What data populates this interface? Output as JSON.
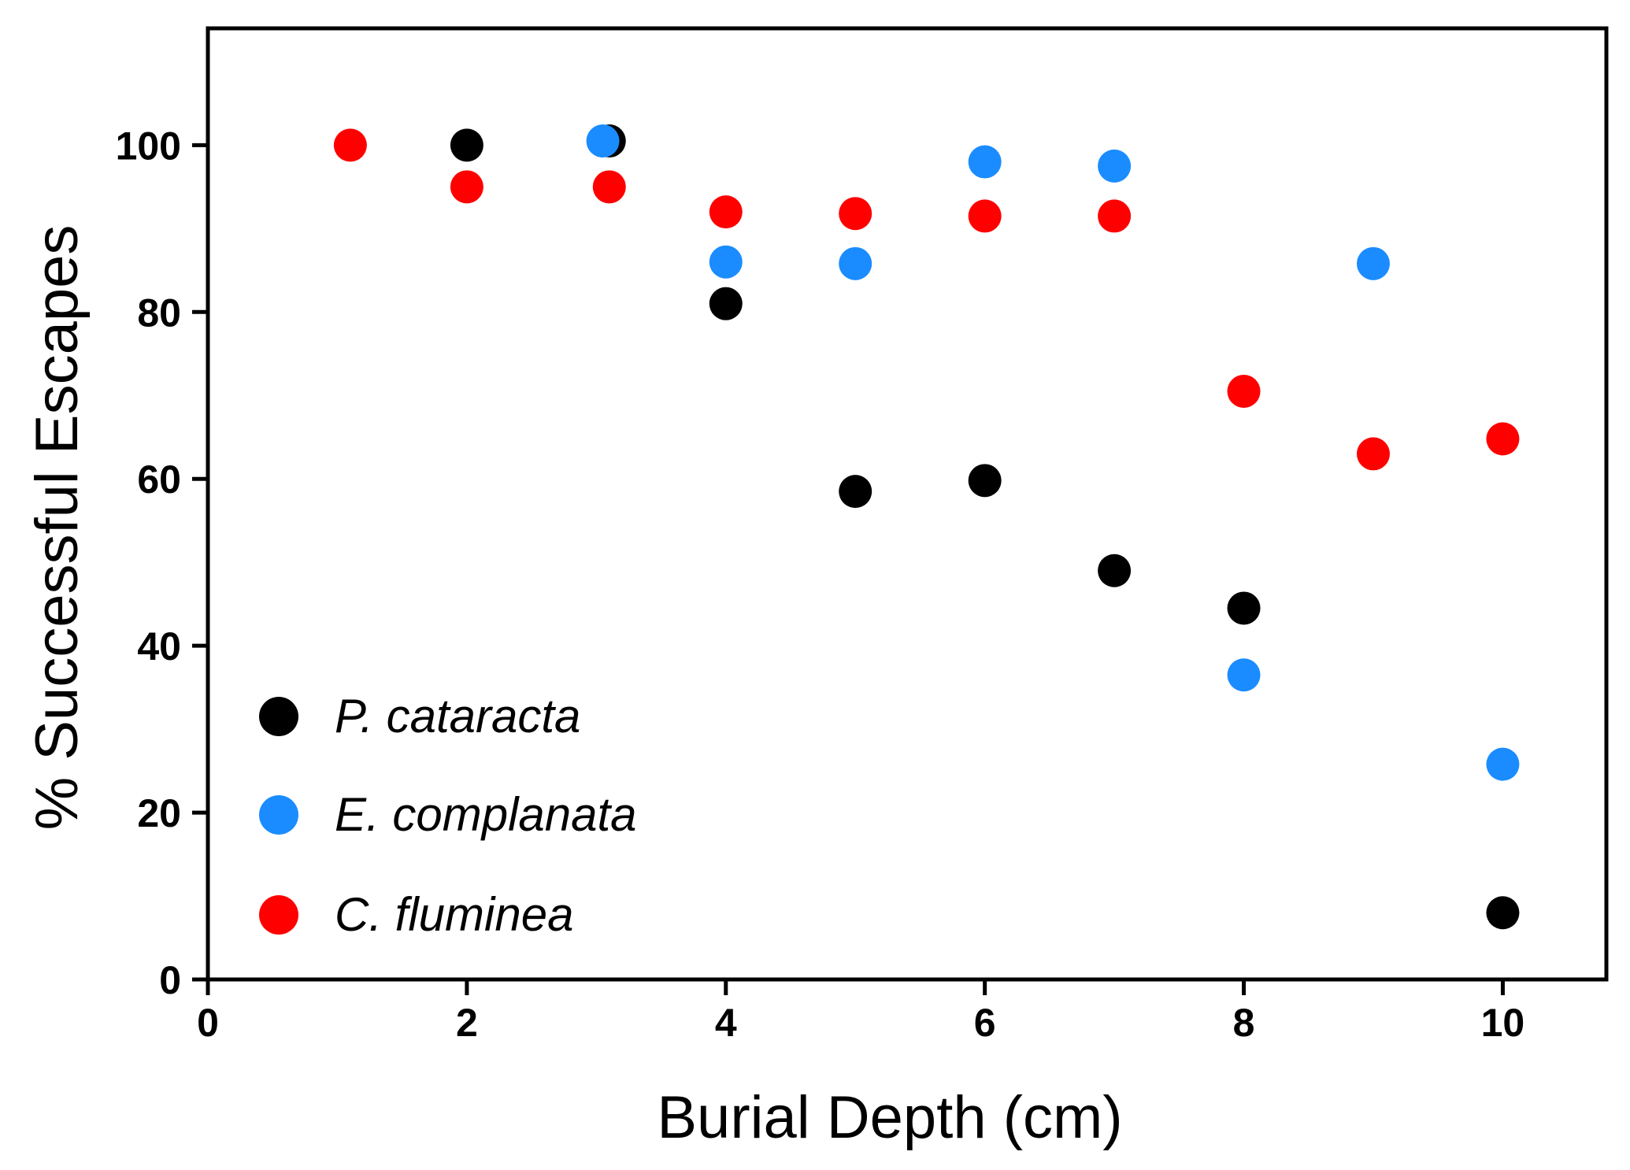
{
  "chart_data": {
    "type": "scatter",
    "title": "",
    "xlabel": "Burial Depth (cm)",
    "ylabel": "% Successful Escapes",
    "xlim": [
      0,
      10.8
    ],
    "ylim": [
      0,
      114
    ],
    "xticks": [
      0,
      2,
      4,
      6,
      8,
      10
    ],
    "yticks": [
      0,
      20,
      40,
      60,
      80,
      100
    ],
    "grid": false,
    "legend_position": "bottom-left",
    "series": [
      {
        "name": "P. cataracta",
        "color": "#000000",
        "points": [
          {
            "x": 2,
            "y": 100
          },
          {
            "x": 3.1,
            "y": 100.5
          },
          {
            "x": 4,
            "y": 81
          },
          {
            "x": 5,
            "y": 58.5
          },
          {
            "x": 6,
            "y": 59.8
          },
          {
            "x": 7,
            "y": 49
          },
          {
            "x": 8,
            "y": 44.5
          },
          {
            "x": 10,
            "y": 8
          }
        ]
      },
      {
        "name": "E. complanata",
        "color": "#1a8cff",
        "points": [
          {
            "x": 3.05,
            "y": 100.5
          },
          {
            "x": 4,
            "y": 86
          },
          {
            "x": 5,
            "y": 85.8
          },
          {
            "x": 6,
            "y": 98
          },
          {
            "x": 7,
            "y": 97.5
          },
          {
            "x": 8,
            "y": 36.5
          },
          {
            "x": 9,
            "y": 85.8
          },
          {
            "x": 10,
            "y": 25.8
          }
        ]
      },
      {
        "name": "C. fluminea",
        "color": "#ff0000",
        "points": [
          {
            "x": 1.1,
            "y": 100
          },
          {
            "x": 2,
            "y": 95
          },
          {
            "x": 3.1,
            "y": 95
          },
          {
            "x": 4,
            "y": 92
          },
          {
            "x": 5,
            "y": 91.8
          },
          {
            "x": 6,
            "y": 91.5
          },
          {
            "x": 7,
            "y": 91.5
          },
          {
            "x": 8,
            "y": 70.5
          },
          {
            "x": 9,
            "y": 63
          },
          {
            "x": 10,
            "y": 64.8
          }
        ]
      }
    ]
  }
}
